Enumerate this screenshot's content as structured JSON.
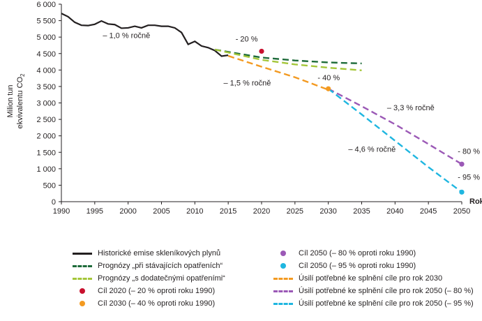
{
  "chart_data": {
    "type": "line",
    "ylabel_line1": "Milion tun",
    "ylabel_line2": "ekvivalentu CO",
    "ylabel_sub": "2",
    "xlabel": "Rok",
    "xlim": [
      1990,
      2050
    ],
    "ylim": [
      0,
      6000
    ],
    "x_ticks": [
      "1990",
      "1995",
      "2000",
      "2005",
      "2010",
      "2015",
      "2020",
      "2025",
      "2030",
      "2035",
      "2040",
      "2045",
      "2050"
    ],
    "y_ticks": [
      "0",
      "500",
      "1 000",
      "1 500",
      "2 000",
      "2 500",
      "3 000",
      "3 500",
      "4 000",
      "4 500",
      "5 000",
      "5 500",
      "6 000"
    ],
    "colors": {
      "historic": "#231f20",
      "existing": "#1e6b3a",
      "additional": "#a4c639",
      "target2020": "#c8102e",
      "target2030": "#f39a21",
      "target2050_80": "#9b59b6",
      "target2050_95": "#1fb6e0",
      "effort2030": "#f39a21",
      "effort2050_80": "#9b59b6",
      "effort2050_95": "#1fb6e0"
    },
    "series": [
      {
        "name": "Historické emise skleníkových plynů",
        "key": "historic",
        "style": "solid",
        "x": [
          1990,
          1991,
          1992,
          1993,
          1994,
          1995,
          1996,
          1997,
          1998,
          1999,
          2000,
          2001,
          2002,
          2003,
          2004,
          2005,
          2006,
          2007,
          2008,
          2009,
          2010,
          2011,
          2012,
          2013,
          2014,
          2015
        ],
        "y": [
          5720,
          5620,
          5450,
          5360,
          5350,
          5390,
          5490,
          5400,
          5380,
          5270,
          5280,
          5330,
          5280,
          5360,
          5360,
          5330,
          5330,
          5280,
          5140,
          4780,
          4870,
          4730,
          4680,
          4590,
          4420,
          4450
        ]
      },
      {
        "name": "Prognózy „při stávajících opatřeních“",
        "key": "existing",
        "style": "dash",
        "x": [
          2013,
          2020,
          2025,
          2030,
          2035
        ],
        "y": [
          4620,
          4380,
          4290,
          4230,
          4200
        ]
      },
      {
        "name": "Prognózy „s dodatečnými opatřeními“",
        "key": "additional",
        "style": "dash",
        "x": [
          2013,
          2020,
          2025,
          2030,
          2035
        ],
        "y": [
          4620,
          4310,
          4170,
          4070,
          3990
        ]
      },
      {
        "name": "Úsilí potřebné ke splnění cíle pro rok 2030",
        "key": "effort2030",
        "style": "dash",
        "x": [
          2015,
          2020,
          2025,
          2030
        ],
        "y": [
          4430,
          4100,
          3780,
          3400
        ]
      },
      {
        "name": "Úsilí potřebné ke splnění cíle pro rok 2050 (– 80 %)",
        "key": "effort2050_80",
        "style": "dash",
        "x": [
          2030,
          2035,
          2040,
          2045,
          2050
        ],
        "y": [
          3430,
          2900,
          2350,
          1750,
          1140
        ]
      },
      {
        "name": "Úsilí potřebné ke splnění cíle pro rok 2050 (– 95 %)",
        "key": "effort2050_95",
        "style": "dash",
        "x": [
          2030,
          2035,
          2040,
          2045,
          2050
        ],
        "y": [
          3430,
          2650,
          1850,
          1050,
          290
        ]
      }
    ],
    "points": [
      {
        "name": "Cíl 2020 (– 20 % oproti roku 1990)",
        "key": "target2020",
        "x": 2020,
        "y": 4570
      },
      {
        "name": "Cíl 2030 (– 40 % oproti roku 1990)",
        "key": "target2030",
        "x": 2030,
        "y": 3430
      },
      {
        "name": "Cíl 2050 (– 80 % oproti roku 1990)",
        "key": "target2050_80",
        "x": 2050,
        "y": 1140
      },
      {
        "name": "Cíl 2050 (– 95 % oproti roku 1990)",
        "key": "target2050_95",
        "x": 2050,
        "y": 290
      }
    ],
    "annotations": [
      {
        "text": "– 1,0 % ročně",
        "x": 1996.2,
        "y": 4970
      },
      {
        "text": "- 20 %",
        "x": 2016.1,
        "y": 4870
      },
      {
        "text": "– 1,5 % ročně",
        "x": 2014.3,
        "y": 3530
      },
      {
        "text": "- 40 %",
        "x": 2028.4,
        "y": 3690
      },
      {
        "text": "– 3,3 % ročně",
        "x": 2038.8,
        "y": 2780
      },
      {
        "text": "– 4,6 % ročně",
        "x": 2033.0,
        "y": 1520
      },
      {
        "text": "- 80 %",
        "x": 2049.4,
        "y": 1450
      },
      {
        "text": "- 95 %",
        "x": 2049.4,
        "y": 670
      }
    ]
  },
  "legend": {
    "left": [
      {
        "label": "Historické emise skleníkových plynů",
        "key": "historic",
        "kind": "solid"
      },
      {
        "label": "Prognózy „při stávajících opatřeních“",
        "key": "existing",
        "kind": "dash"
      },
      {
        "label": "Prognózy „s dodatečnými opatřeními“",
        "key": "additional",
        "kind": "dash"
      },
      {
        "label": "Cíl 2020 (– 20 % oproti roku 1990)",
        "key": "target2020",
        "kind": "dot"
      },
      {
        "label": "Cíl 2030 (– 40 % oproti roku 1990)",
        "key": "target2030",
        "kind": "dot"
      }
    ],
    "right": [
      {
        "label": "Cíl 2050 (– 80 % oproti roku 1990)",
        "key": "target2050_80",
        "kind": "dot"
      },
      {
        "label": "Cíl 2050 (– 95 % oproti roku 1990)",
        "key": "target2050_95",
        "kind": "dot"
      },
      {
        "label": "Úsilí potřebné ke splnění cíle pro rok 2030",
        "key": "effort2030",
        "kind": "dash"
      },
      {
        "label": "Úsilí potřebné ke splnění cíle pro rok 2050 (– 80 %)",
        "key": "effort2050_80",
        "kind": "dash"
      },
      {
        "label": "Úsilí potřebné ke splnění cíle pro rok 2050 (– 95 %)",
        "key": "effort2050_95",
        "kind": "dash"
      }
    ]
  }
}
